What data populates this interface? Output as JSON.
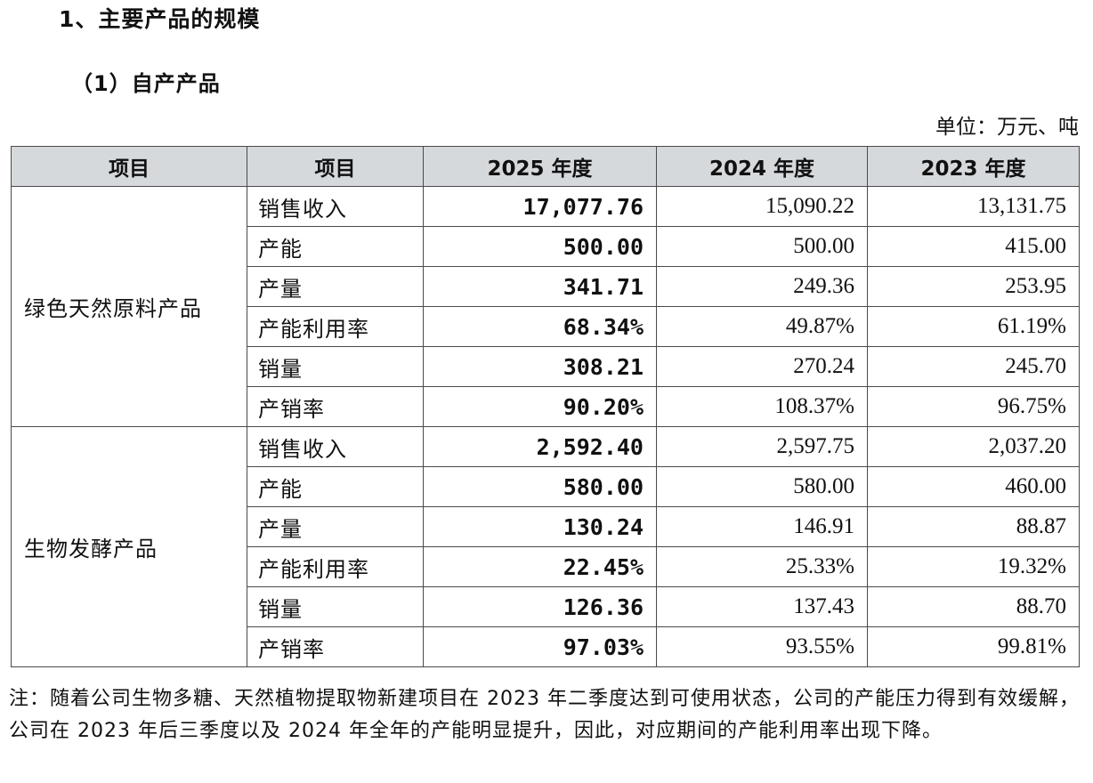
{
  "heading": "1、主要产品的规模",
  "subheading": "（1）自产产品",
  "unit_label": "单位：万元、吨",
  "table": {
    "headers": [
      "项目",
      "项目",
      "2025 年度",
      "2024 年度",
      "2023 年度"
    ],
    "groups": [
      {
        "category": "绿色天然原料产品",
        "rows": [
          {
            "item": "销售收入",
            "y2025": "17,077.76",
            "y2024": "15,090.22",
            "y2023": "13,131.75"
          },
          {
            "item": "产能",
            "y2025": "500.00",
            "y2024": "500.00",
            "y2023": "415.00"
          },
          {
            "item": "产量",
            "y2025": "341.71",
            "y2024": "249.36",
            "y2023": "253.95"
          },
          {
            "item": "产能利用率",
            "y2025": "68.34%",
            "y2024": "49.87%",
            "y2023": "61.19%"
          },
          {
            "item": "销量",
            "y2025": "308.21",
            "y2024": "270.24",
            "y2023": "245.70"
          },
          {
            "item": "产销率",
            "y2025": "90.20%",
            "y2024": "108.37%",
            "y2023": "96.75%"
          }
        ]
      },
      {
        "category": "生物发酵产品",
        "rows": [
          {
            "item": "销售收入",
            "y2025": "2,592.40",
            "y2024": "2,597.75",
            "y2023": "2,037.20"
          },
          {
            "item": "产能",
            "y2025": "580.00",
            "y2024": "580.00",
            "y2023": "460.00"
          },
          {
            "item": "产量",
            "y2025": "130.24",
            "y2024": "146.91",
            "y2023": "88.87"
          },
          {
            "item": "产能利用率",
            "y2025": "22.45%",
            "y2024": "25.33%",
            "y2023": "19.32%"
          },
          {
            "item": "销量",
            "y2025": "126.36",
            "y2024": "137.43",
            "y2023": "88.70"
          },
          {
            "item": "产销率",
            "y2025": "97.03%",
            "y2024": "93.55%",
            "y2023": "99.81%"
          }
        ]
      }
    ]
  },
  "note": "注：随着公司生物多糖、天然植物提取物新建项目在 2023 年二季度达到可使用状态，公司的产能压力得到有效缓解，公司在 2023 年后三季度以及 2024 年全年的产能明显提升，因此，对应期间的产能利用率出现下降。"
}
